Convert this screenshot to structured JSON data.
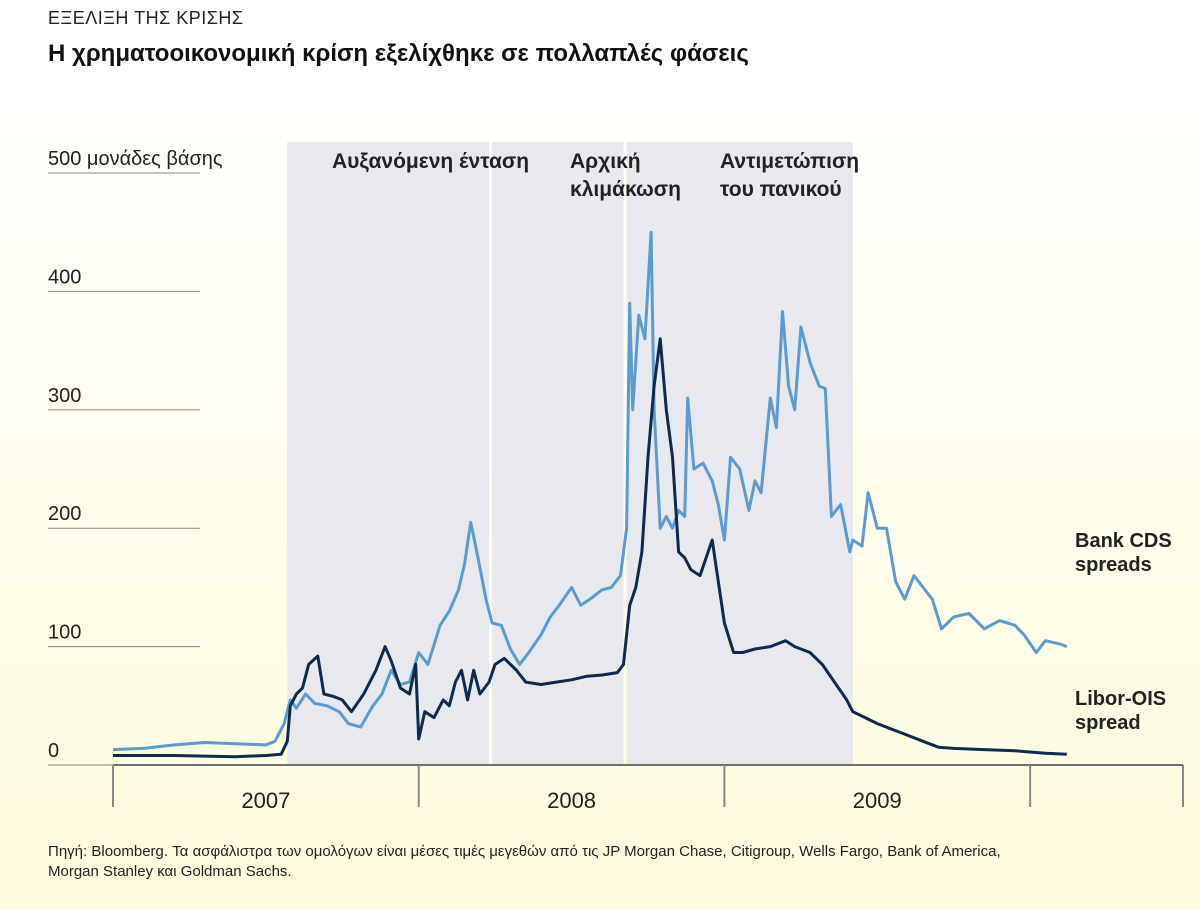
{
  "header": {
    "kicker": "ΕΞΕΛΙΞΗ ΤΗΣ ΚΡΙΣΗΣ",
    "title": "Η χρηματοοικονομική κρίση εξελίχθηκε σε πολλαπλές φάσεις"
  },
  "source": "Πηγή: Bloomberg. Τα ασφάλιστρα των ομολόγων είναι μέσες τιμές μεγεθών από τις JP Morgan Chase, Citigroup, Wells Fargo, Bank of America, Morgan Stanley και Goldman Sachs.",
  "colors": {
    "cds": "#5b9bd0",
    "libor": "#0e2a4e",
    "shade": "#e8e9ee",
    "grid": "#888888"
  },
  "chart_data": {
    "type": "line",
    "ylim": [
      0,
      500
    ],
    "xlim": [
      2006.5,
      2010.0
    ],
    "y_ticks": [
      {
        "value": 0,
        "label": "0"
      },
      {
        "value": 100,
        "label": "100"
      },
      {
        "value": 200,
        "label": "200"
      },
      {
        "value": 300,
        "label": "300"
      },
      {
        "value": 400,
        "label": "400"
      },
      {
        "value": 500,
        "label": "500 μονάδες βάσης"
      }
    ],
    "x_boundaries": [
      2006.5,
      2007.5,
      2008.5,
      2009.5,
      2010.0
    ],
    "x_year_labels": [
      {
        "label": "2007",
        "at": 2007.0
      },
      {
        "label": "2008",
        "at": 2008.0
      },
      {
        "label": "2009",
        "at": 2009.0
      }
    ],
    "phases": [
      {
        "label_lines": [
          "Αυξανόμενη ένταση"
        ],
        "start": 2007.07,
        "end": 2007.73
      },
      {
        "label_lines": [
          "Αρχική",
          "κλιμάκωση"
        ],
        "start": 2007.74,
        "end": 2008.17
      },
      {
        "label_lines": [
          "Αντιμετώπιση",
          "του πανικού"
        ],
        "start": 2008.18,
        "end": 2008.92
      }
    ],
    "series": [
      {
        "name": "Bank CDS spreads",
        "label_lines": [
          "Bank CDS",
          "spreads"
        ],
        "color_key": "cds",
        "points": [
          [
            2006.5,
            13
          ],
          [
            2006.6,
            14
          ],
          [
            2006.7,
            17
          ],
          [
            2006.8,
            19
          ],
          [
            2006.9,
            18
          ],
          [
            2007.0,
            17
          ],
          [
            2007.03,
            20
          ],
          [
            2007.06,
            35
          ],
          [
            2007.08,
            55
          ],
          [
            2007.1,
            48
          ],
          [
            2007.13,
            60
          ],
          [
            2007.16,
            52
          ],
          [
            2007.2,
            50
          ],
          [
            2007.24,
            45
          ],
          [
            2007.27,
            35
          ],
          [
            2007.31,
            32
          ],
          [
            2007.35,
            50
          ],
          [
            2007.38,
            60
          ],
          [
            2007.41,
            80
          ],
          [
            2007.44,
            68
          ],
          [
            2007.47,
            70
          ],
          [
            2007.5,
            95
          ],
          [
            2007.53,
            85
          ],
          [
            2007.57,
            118
          ],
          [
            2007.6,
            130
          ],
          [
            2007.63,
            148
          ],
          [
            2007.65,
            170
          ],
          [
            2007.67,
            205
          ],
          [
            2007.69,
            180
          ],
          [
            2007.72,
            140
          ],
          [
            2007.74,
            120
          ],
          [
            2007.77,
            118
          ],
          [
            2007.8,
            98
          ],
          [
            2007.83,
            85
          ],
          [
            2007.86,
            95
          ],
          [
            2007.9,
            110
          ],
          [
            2007.93,
            125
          ],
          [
            2007.96,
            135
          ],
          [
            2008.0,
            150
          ],
          [
            2008.03,
            135
          ],
          [
            2008.06,
            140
          ],
          [
            2008.1,
            148
          ],
          [
            2008.13,
            150
          ],
          [
            2008.16,
            160
          ],
          [
            2008.18,
            200
          ],
          [
            2008.19,
            390
          ],
          [
            2008.2,
            300
          ],
          [
            2008.22,
            380
          ],
          [
            2008.24,
            360
          ],
          [
            2008.26,
            450
          ],
          [
            2008.27,
            300
          ],
          [
            2008.29,
            200
          ],
          [
            2008.31,
            210
          ],
          [
            2008.33,
            200
          ],
          [
            2008.35,
            215
          ],
          [
            2008.37,
            210
          ],
          [
            2008.38,
            310
          ],
          [
            2008.4,
            250
          ],
          [
            2008.43,
            255
          ],
          [
            2008.46,
            240
          ],
          [
            2008.48,
            220
          ],
          [
            2008.5,
            190
          ],
          [
            2008.52,
            260
          ],
          [
            2008.55,
            250
          ],
          [
            2008.58,
            215
          ],
          [
            2008.6,
            240
          ],
          [
            2008.62,
            230
          ],
          [
            2008.65,
            310
          ],
          [
            2008.67,
            285
          ],
          [
            2008.69,
            383
          ],
          [
            2008.71,
            320
          ],
          [
            2008.73,
            300
          ],
          [
            2008.75,
            370
          ],
          [
            2008.78,
            340
          ],
          [
            2008.81,
            320
          ],
          [
            2008.83,
            318
          ],
          [
            2008.85,
            210
          ],
          [
            2008.88,
            220
          ],
          [
            2008.91,
            180
          ],
          [
            2008.92,
            190
          ],
          [
            2008.95,
            185
          ],
          [
            2008.97,
            230
          ],
          [
            2009.0,
            200
          ],
          [
            2009.03,
            200
          ],
          [
            2009.06,
            155
          ],
          [
            2009.09,
            140
          ],
          [
            2009.12,
            160
          ],
          [
            2009.15,
            150
          ],
          [
            2009.18,
            140
          ],
          [
            2009.21,
            115
          ],
          [
            2009.25,
            125
          ],
          [
            2009.3,
            128
          ],
          [
            2009.35,
            115
          ],
          [
            2009.4,
            122
          ],
          [
            2009.45,
            118
          ],
          [
            2009.48,
            110
          ],
          [
            2009.52,
            95
          ],
          [
            2009.55,
            105
          ],
          [
            2009.6,
            102
          ],
          [
            2009.62,
            100
          ]
        ]
      },
      {
        "name": "Libor-OIS spread",
        "label_lines": [
          "Libor-OIS",
          "spread"
        ],
        "color_key": "libor",
        "points": [
          [
            2006.5,
            8
          ],
          [
            2006.7,
            8
          ],
          [
            2006.9,
            7
          ],
          [
            2007.0,
            8
          ],
          [
            2007.05,
            9
          ],
          [
            2007.07,
            20
          ],
          [
            2007.08,
            50
          ],
          [
            2007.1,
            60
          ],
          [
            2007.12,
            65
          ],
          [
            2007.14,
            85
          ],
          [
            2007.17,
            92
          ],
          [
            2007.19,
            60
          ],
          [
            2007.22,
            58
          ],
          [
            2007.25,
            55
          ],
          [
            2007.28,
            45
          ],
          [
            2007.32,
            60
          ],
          [
            2007.36,
            80
          ],
          [
            2007.39,
            100
          ],
          [
            2007.41,
            88
          ],
          [
            2007.44,
            65
          ],
          [
            2007.47,
            60
          ],
          [
            2007.49,
            85
          ],
          [
            2007.5,
            22
          ],
          [
            2007.52,
            45
          ],
          [
            2007.55,
            40
          ],
          [
            2007.58,
            55
          ],
          [
            2007.6,
            50
          ],
          [
            2007.62,
            70
          ],
          [
            2007.64,
            80
          ],
          [
            2007.66,
            55
          ],
          [
            2007.68,
            80
          ],
          [
            2007.7,
            60
          ],
          [
            2007.73,
            70
          ],
          [
            2007.75,
            85
          ],
          [
            2007.78,
            90
          ],
          [
            2007.82,
            80
          ],
          [
            2007.85,
            70
          ],
          [
            2007.9,
            68
          ],
          [
            2007.95,
            70
          ],
          [
            2008.0,
            72
          ],
          [
            2008.05,
            75
          ],
          [
            2008.1,
            76
          ],
          [
            2008.15,
            78
          ],
          [
            2008.17,
            85
          ],
          [
            2008.18,
            110
          ],
          [
            2008.19,
            135
          ],
          [
            2008.21,
            150
          ],
          [
            2008.23,
            180
          ],
          [
            2008.25,
            260
          ],
          [
            2008.27,
            320
          ],
          [
            2008.29,
            360
          ],
          [
            2008.31,
            300
          ],
          [
            2008.33,
            260
          ],
          [
            2008.35,
            180
          ],
          [
            2008.37,
            175
          ],
          [
            2008.39,
            165
          ],
          [
            2008.42,
            160
          ],
          [
            2008.44,
            175
          ],
          [
            2008.46,
            190
          ],
          [
            2008.48,
            155
          ],
          [
            2008.5,
            120
          ],
          [
            2008.53,
            95
          ],
          [
            2008.56,
            95
          ],
          [
            2008.6,
            98
          ],
          [
            2008.65,
            100
          ],
          [
            2008.7,
            105
          ],
          [
            2008.73,
            100
          ],
          [
            2008.78,
            95
          ],
          [
            2008.82,
            85
          ],
          [
            2008.86,
            70
          ],
          [
            2008.9,
            55
          ],
          [
            2008.92,
            45
          ],
          [
            2008.96,
            40
          ],
          [
            2009.0,
            35
          ],
          [
            2009.05,
            30
          ],
          [
            2009.1,
            25
          ],
          [
            2009.15,
            20
          ],
          [
            2009.2,
            15
          ],
          [
            2009.25,
            14
          ],
          [
            2009.35,
            13
          ],
          [
            2009.45,
            12
          ],
          [
            2009.55,
            10
          ],
          [
            2009.62,
            9
          ]
        ]
      }
    ]
  }
}
